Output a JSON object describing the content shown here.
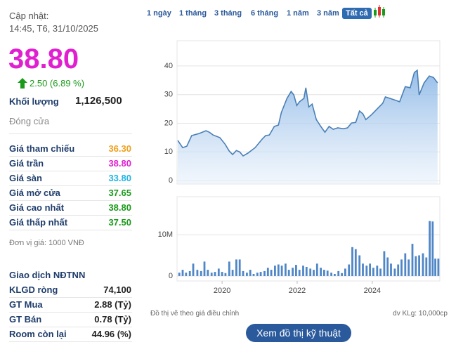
{
  "sidebar": {
    "updated_label": "Cập nhật:",
    "updated_time": "14:45, T6, 31/10/2025",
    "price": "38.80",
    "change": "2.50 (6.89 %)",
    "volume_label": "Khối lượng",
    "volume": "1,126,500",
    "close_label": "Đóng cửa",
    "rows": [
      {
        "label": "Giá tham chiếu",
        "value": "36.30",
        "color": "#f0a01e"
      },
      {
        "label": "Giá trần",
        "value": "38.80",
        "color": "#e020d0"
      },
      {
        "label": "Giá sàn",
        "value": "33.80",
        "color": "#1eb4e6"
      },
      {
        "label": "Giá mở cửa",
        "value": "37.65",
        "color": "#1a9a1a"
      },
      {
        "label": "Giá cao nhất",
        "value": "38.80",
        "color": "#1a9a1a"
      },
      {
        "label": "Giá thấp nhất",
        "value": "37.50",
        "color": "#1a9a1a"
      }
    ],
    "unit_note": "Đơn vị giá: 1000 VNĐ",
    "foreign_title": "Giao dịch NĐTNN",
    "foreign_rows": [
      {
        "label": "KLGD ròng",
        "value": "74,100"
      },
      {
        "label": "GT Mua",
        "value": "2.88 (Tỷ)"
      },
      {
        "label": "GT Bán",
        "value": "0.78 (Tỷ)"
      },
      {
        "label": "Room còn lại",
        "value": "44.96 (%)"
      }
    ]
  },
  "tabs": [
    "1 ngày",
    "1 tháng",
    "3 tháng",
    "6 tháng",
    "1 năm",
    "3 năm",
    "Tất cả"
  ],
  "active_tab": "Tất cả",
  "footer": {
    "note": "Đồ thị vẽ theo giá điều chỉnh",
    "unit": "dv KLg: 10,000cp",
    "button": "Xem đồ thị kỹ thuật"
  },
  "chart_data": [
    {
      "type": "line",
      "color": "#4a7fb5",
      "x": [
        2018.82,
        2018.95,
        2019.06,
        2019.19,
        2019.38,
        2019.57,
        2019.66,
        2019.76,
        2019.94,
        2020.08,
        2020.19,
        2020.28,
        2020.38,
        2020.47,
        2020.56,
        2020.69,
        2020.88,
        2021.07,
        2021.16,
        2021.26,
        2021.39,
        2021.5,
        2021.58,
        2021.73,
        2021.84,
        2021.91,
        2021.99,
        2022.06,
        2022.18,
        2022.23,
        2022.31,
        2022.4,
        2022.51,
        2022.63,
        2022.74,
        2022.85,
        2022.96,
        2023.08,
        2023.23,
        2023.34,
        2023.45,
        2023.56,
        2023.66,
        2023.75,
        2023.83,
        2023.98,
        2024.13,
        2024.28,
        2024.35,
        2024.47,
        2024.58,
        2024.73,
        2024.88,
        2025.01,
        2025.12,
        2025.2,
        2025.25,
        2025.38,
        2025.52,
        2025.63,
        2025.74
      ],
      "values": [
        14.0,
        11.5,
        12.0,
        15.7,
        16.4,
        17.4,
        16.9,
        15.9,
        15.0,
        12.7,
        10.3,
        9.1,
        10.5,
        10.0,
        8.6,
        9.6,
        11.5,
        14.5,
        15.7,
        15.9,
        18.9,
        19.4,
        23.8,
        28.7,
        31.1,
        29.9,
        26.2,
        27.5,
        28.7,
        32.4,
        25.7,
        26.7,
        21.3,
        18.9,
        16.9,
        18.9,
        17.9,
        18.4,
        18.1,
        18.4,
        20.1,
        20.3,
        24.3,
        23.3,
        21.3,
        23.0,
        25.0,
        27.0,
        29.2,
        28.7,
        28.2,
        27.5,
        32.8,
        32.4,
        37.7,
        38.5,
        29.9,
        34.1,
        36.5,
        36.0,
        34.1
      ],
      "xlim": [
        2018.8,
        2025.8
      ],
      "ylim": [
        -1.2,
        48.8
      ],
      "yticks": [
        0,
        10,
        20,
        30,
        40
      ],
      "grid": true
    },
    {
      "type": "bar",
      "color": "#4f86c6",
      "x": [
        2018.86,
        2018.95,
        2019.04,
        2019.14,
        2019.23,
        2019.34,
        2019.44,
        2019.53,
        2019.62,
        2019.72,
        2019.81,
        2019.91,
        2020.0,
        2020.09,
        2020.19,
        2020.28,
        2020.38,
        2020.47,
        2020.56,
        2020.66,
        2020.75,
        2020.84,
        2020.94,
        2021.03,
        2021.13,
        2021.22,
        2021.31,
        2021.41,
        2021.5,
        2021.59,
        2021.69,
        2021.78,
        2021.88,
        2021.97,
        2022.06,
        2022.16,
        2022.25,
        2022.35,
        2022.44,
        2022.53,
        2022.63,
        2022.72,
        2022.81,
        2022.91,
        2023.0,
        2023.1,
        2023.19,
        2023.28,
        2023.38,
        2023.47,
        2023.56,
        2023.66,
        2023.75,
        2023.85,
        2023.94,
        2024.03,
        2024.13,
        2024.22,
        2024.32,
        2024.41,
        2024.5,
        2024.6,
        2024.69,
        2024.78,
        2024.88,
        2024.97,
        2025.07,
        2025.16,
        2025.25,
        2025.35,
        2025.44,
        2025.53,
        2025.61,
        2025.68,
        2025.76
      ],
      "values": [
        800000,
        1500000,
        800000,
        1200000,
        3000000,
        1500000,
        1200000,
        3500000,
        1500000,
        800000,
        1000000,
        1800000,
        1000000,
        700000,
        3500000,
        1500000,
        4000000,
        4000000,
        1200000,
        800000,
        1500000,
        500000,
        800000,
        1000000,
        1200000,
        2000000,
        1500000,
        2500000,
        2800000,
        2500000,
        3000000,
        1500000,
        2000000,
        2700000,
        1500000,
        2500000,
        2200000,
        1800000,
        1500000,
        3000000,
        2000000,
        1500000,
        1300000,
        800000,
        500000,
        1200000,
        700000,
        1800000,
        2800000,
        7000000,
        6500000,
        5000000,
        3000000,
        2500000,
        3000000,
        2000000,
        2500000,
        1800000,
        6000000,
        4500000,
        3000000,
        1800000,
        2800000,
        4000000,
        5500000,
        4000000,
        7800000,
        4800000,
        5000000,
        5500000,
        4500000,
        13300000,
        13200000,
        4200000,
        4200000
      ],
      "xlim": [
        2018.8,
        2025.8
      ],
      "ylim": [
        -1200000,
        19200000
      ],
      "yticks": [
        0,
        {
          "value": 10000000,
          "label": "10M"
        }
      ],
      "xticks": [
        2020,
        2022,
        2024
      ],
      "grid": true
    }
  ]
}
